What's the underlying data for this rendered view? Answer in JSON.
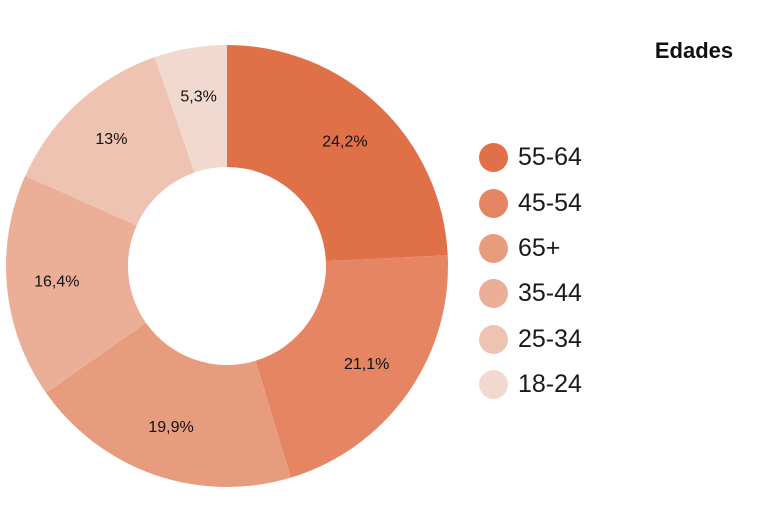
{
  "chart_data": {
    "type": "pie",
    "title": "Edades",
    "categories": [
      "55-64",
      "45-54",
      "65+",
      "35-44",
      "25-34",
      "18-24"
    ],
    "values": [
      24.2,
      21.1,
      19.9,
      16.4,
      13.0,
      5.3
    ],
    "value_labels": [
      "24,2%",
      "21,1%",
      "19,9%",
      "16,4%",
      "13%",
      "5,3%"
    ],
    "colors": [
      "#E07048",
      "#E58563",
      "#E89C7E",
      "#EBAE97",
      "#EEC3B2",
      "#F2D9CF"
    ],
    "donut": true,
    "legend": "right"
  }
}
